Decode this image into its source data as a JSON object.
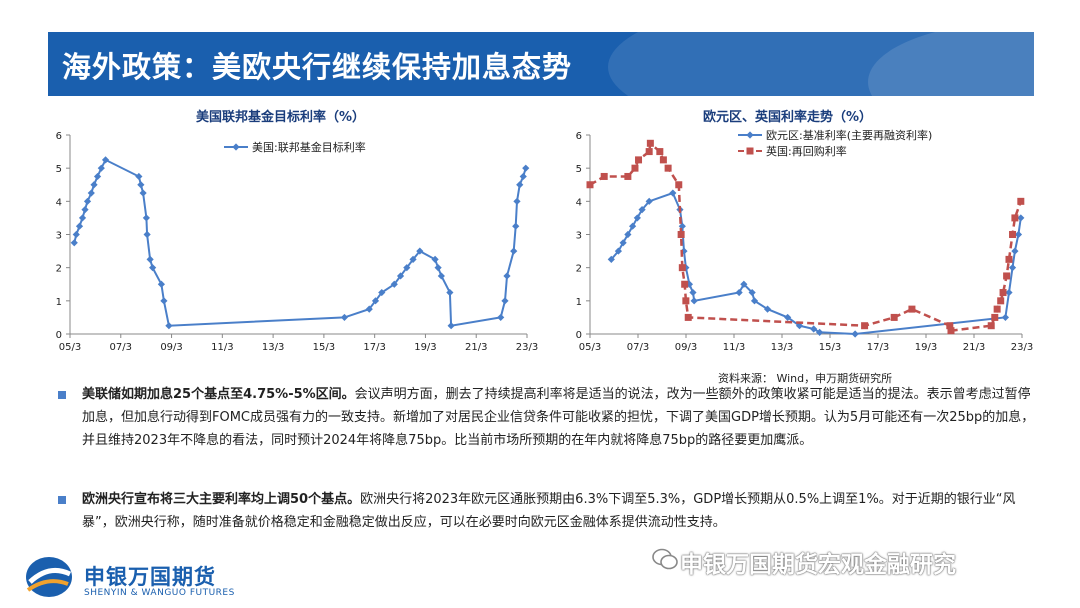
{
  "header": {
    "title": "海外政策：美欧央行继续保持加息态势"
  },
  "chart_left_title": "美国联邦基金目标利率（%）",
  "chart_right_title": "欧元区、英国利率走势（%）",
  "chart_data": [
    {
      "type": "line",
      "title": "美国联邦基金目标利率（%）",
      "x_tick_labels": [
        "05/3",
        "07/3",
        "09/3",
        "11/3",
        "13/3",
        "15/3",
        "17/3",
        "19/3",
        "21/3",
        "23/3"
      ],
      "ylim": [
        0,
        6
      ],
      "y_ticks": [
        "0",
        "1",
        "2",
        "3",
        "4",
        "5",
        "6"
      ],
      "legend_position": "top",
      "series": [
        {
          "name": "美国:联邦基金目标利率",
          "color": "#4a7fc9",
          "marker": "diamond",
          "points": [
            [
              2005.17,
              2.75
            ],
            [
              2005.25,
              3.0
            ],
            [
              2005.38,
              3.25
            ],
            [
              2005.5,
              3.5
            ],
            [
              2005.6,
              3.75
            ],
            [
              2005.7,
              4.0
            ],
            [
              2005.85,
              4.25
            ],
            [
              2005.96,
              4.5
            ],
            [
              2006.1,
              4.75
            ],
            [
              2006.25,
              5.0
            ],
            [
              2006.42,
              5.25
            ],
            [
              2007.75,
              4.75
            ],
            [
              2007.83,
              4.5
            ],
            [
              2007.92,
              4.25
            ],
            [
              2008.05,
              3.5
            ],
            [
              2008.08,
              3.0
            ],
            [
              2008.2,
              2.25
            ],
            [
              2008.3,
              2.0
            ],
            [
              2008.65,
              1.5
            ],
            [
              2008.75,
              1.0
            ],
            [
              2008.95,
              0.25
            ],
            [
              2015.96,
              0.5
            ],
            [
              2016.95,
              0.75
            ],
            [
              2017.2,
              1.0
            ],
            [
              2017.45,
              1.25
            ],
            [
              2017.95,
              1.5
            ],
            [
              2018.2,
              1.75
            ],
            [
              2018.45,
              2.0
            ],
            [
              2018.7,
              2.25
            ],
            [
              2018.97,
              2.5
            ],
            [
              2019.58,
              2.25
            ],
            [
              2019.7,
              2.0
            ],
            [
              2019.83,
              1.75
            ],
            [
              2020.17,
              1.25
            ],
            [
              2020.22,
              0.25
            ],
            [
              2022.2,
              0.5
            ],
            [
              2022.37,
              1.0
            ],
            [
              2022.45,
              1.75
            ],
            [
              2022.72,
              2.5
            ],
            [
              2022.8,
              3.25
            ],
            [
              2022.85,
              4.0
            ],
            [
              2022.96,
              4.5
            ],
            [
              2023.1,
              4.75
            ],
            [
              2023.2,
              5.0
            ]
          ]
        }
      ]
    },
    {
      "type": "line",
      "title": "欧元区、英国利率走势（%）",
      "x_tick_labels": [
        "05/3",
        "07/3",
        "09/3",
        "11/3",
        "13/3",
        "15/3",
        "17/3",
        "19/3",
        "21/3",
        "23/3"
      ],
      "ylim": [
        0,
        6
      ],
      "y_ticks": [
        "0",
        "1",
        "2",
        "3",
        "4",
        "5",
        "6"
      ],
      "legend_position": "top",
      "series": [
        {
          "name": "欧元区:基准利率(主要再融资利率)",
          "color": "#4a7fc9",
          "marker": "diamond",
          "dashed": false,
          "points": [
            [
              2005.9,
              2.25
            ],
            [
              2006.2,
              2.5
            ],
            [
              2006.4,
              2.75
            ],
            [
              2006.6,
              3.0
            ],
            [
              2006.8,
              3.25
            ],
            [
              2007.0,
              3.5
            ],
            [
              2007.2,
              3.75
            ],
            [
              2007.5,
              4.0
            ],
            [
              2008.5,
              4.25
            ],
            [
              2008.8,
              3.75
            ],
            [
              2008.9,
              3.25
            ],
            [
              2008.97,
              2.5
            ],
            [
              2009.05,
              2.0
            ],
            [
              2009.2,
              1.5
            ],
            [
              2009.35,
              1.25
            ],
            [
              2009.4,
              1.0
            ],
            [
              2011.3,
              1.25
            ],
            [
              2011.5,
              1.5
            ],
            [
              2011.85,
              1.25
            ],
            [
              2011.95,
              1.0
            ],
            [
              2012.5,
              0.75
            ],
            [
              2013.35,
              0.5
            ],
            [
              2013.85,
              0.25
            ],
            [
              2014.45,
              0.15
            ],
            [
              2014.7,
              0.05
            ],
            [
              2016.2,
              0.0
            ],
            [
              2022.55,
              0.5
            ],
            [
              2022.7,
              1.25
            ],
            [
              2022.85,
              2.0
            ],
            [
              2022.95,
              2.5
            ],
            [
              2023.1,
              3.0
            ],
            [
              2023.2,
              3.5
            ]
          ]
        },
        {
          "name": "英国:再回购利率",
          "color": "#c0504d",
          "marker": "square",
          "dashed": true,
          "points": [
            [
              2005.0,
              4.5
            ],
            [
              2005.6,
              4.75
            ],
            [
              2006.6,
              4.75
            ],
            [
              2006.9,
              5.0
            ],
            [
              2007.05,
              5.25
            ],
            [
              2007.5,
              5.5
            ],
            [
              2007.55,
              5.75
            ],
            [
              2007.95,
              5.5
            ],
            [
              2008.1,
              5.25
            ],
            [
              2008.3,
              5.0
            ],
            [
              2008.75,
              4.5
            ],
            [
              2008.85,
              3.0
            ],
            [
              2008.9,
              2.0
            ],
            [
              2009.0,
              1.5
            ],
            [
              2009.05,
              1.0
            ],
            [
              2009.15,
              0.5
            ],
            [
              2016.6,
              0.25
            ],
            [
              2017.85,
              0.5
            ],
            [
              2018.6,
              0.75
            ],
            [
              2020.2,
              0.25
            ],
            [
              2020.25,
              0.1
            ],
            [
              2021.95,
              0.25
            ],
            [
              2022.1,
              0.5
            ],
            [
              2022.2,
              0.75
            ],
            [
              2022.35,
              1.0
            ],
            [
              2022.45,
              1.25
            ],
            [
              2022.6,
              1.75
            ],
            [
              2022.7,
              2.25
            ],
            [
              2022.85,
              3.0
            ],
            [
              2022.95,
              3.5
            ],
            [
              2023.2,
              4.0
            ]
          ]
        }
      ]
    }
  ],
  "source": "资料来源： Wind，申万期货研究所",
  "bullets": [
    {
      "bold": "美联储如期加息25个基点至4.75%-5%区间。",
      "text": "会议声明方面，删去了持续提高利率将是适当的说法，改为一些额外的政策收紧可能是适当的提法。表示曾考虑过暂停加息，但加息行动得到FOMC成员强有力的一致支持。新增加了对居民企业信贷条件可能收紧的担忧，下调了美国GDP增长预期。认为5月可能还有一次25bp的加息，并且维持2023年不降息的看法，同时预计2024年将降息75bp。比当前市场所预期的在年内就将降息75bp的路径要更加鹰派。"
    },
    {
      "bold": "欧洲央行宣布将三大主要利率均上调50个基点。",
      "text": "欧洲央行将2023年欧元区通胀预期由6.3%下调至5.3%，GDP增长预期从0.5%上调至1%。对于近期的银行业“风暴”，欧洲央行称，随时准备就价格稳定和金融稳定做出反应，可以在必要时向欧元区金融体系提供流动性支持。"
    }
  ],
  "footer": {
    "logo_cn": "申银万国期货",
    "logo_en": "SHENYIN & WANGUO FUTURES",
    "watermark": "申银万国期货宏观金融研究"
  }
}
